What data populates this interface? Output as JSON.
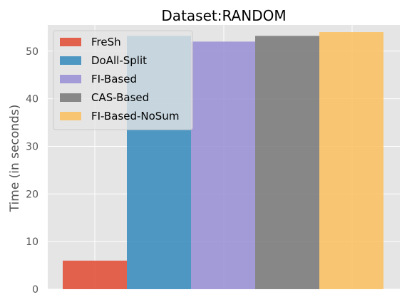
{
  "chart_data": {
    "type": "bar",
    "title": "Dataset:RANDOM",
    "xlabel": "",
    "ylabel": "Time (in seconds)",
    "ylim": [
      0,
      55.5
    ],
    "yticks": [
      0,
      10,
      20,
      30,
      40,
      50
    ],
    "grid": true,
    "legend_position": "top-left",
    "series": [
      {
        "name": "FreSh",
        "value": 6,
        "color": "#E24A33"
      },
      {
        "name": "DoAll-Split",
        "value": 53.2,
        "color": "#348ABD"
      },
      {
        "name": "FI-Based",
        "value": 52,
        "color": "#988ED5"
      },
      {
        "name": "CAS-Based",
        "value": 53.2,
        "color": "#777777"
      },
      {
        "name": "FI-Based-NoSum",
        "value": 54,
        "color": "#FBC15E"
      }
    ]
  }
}
